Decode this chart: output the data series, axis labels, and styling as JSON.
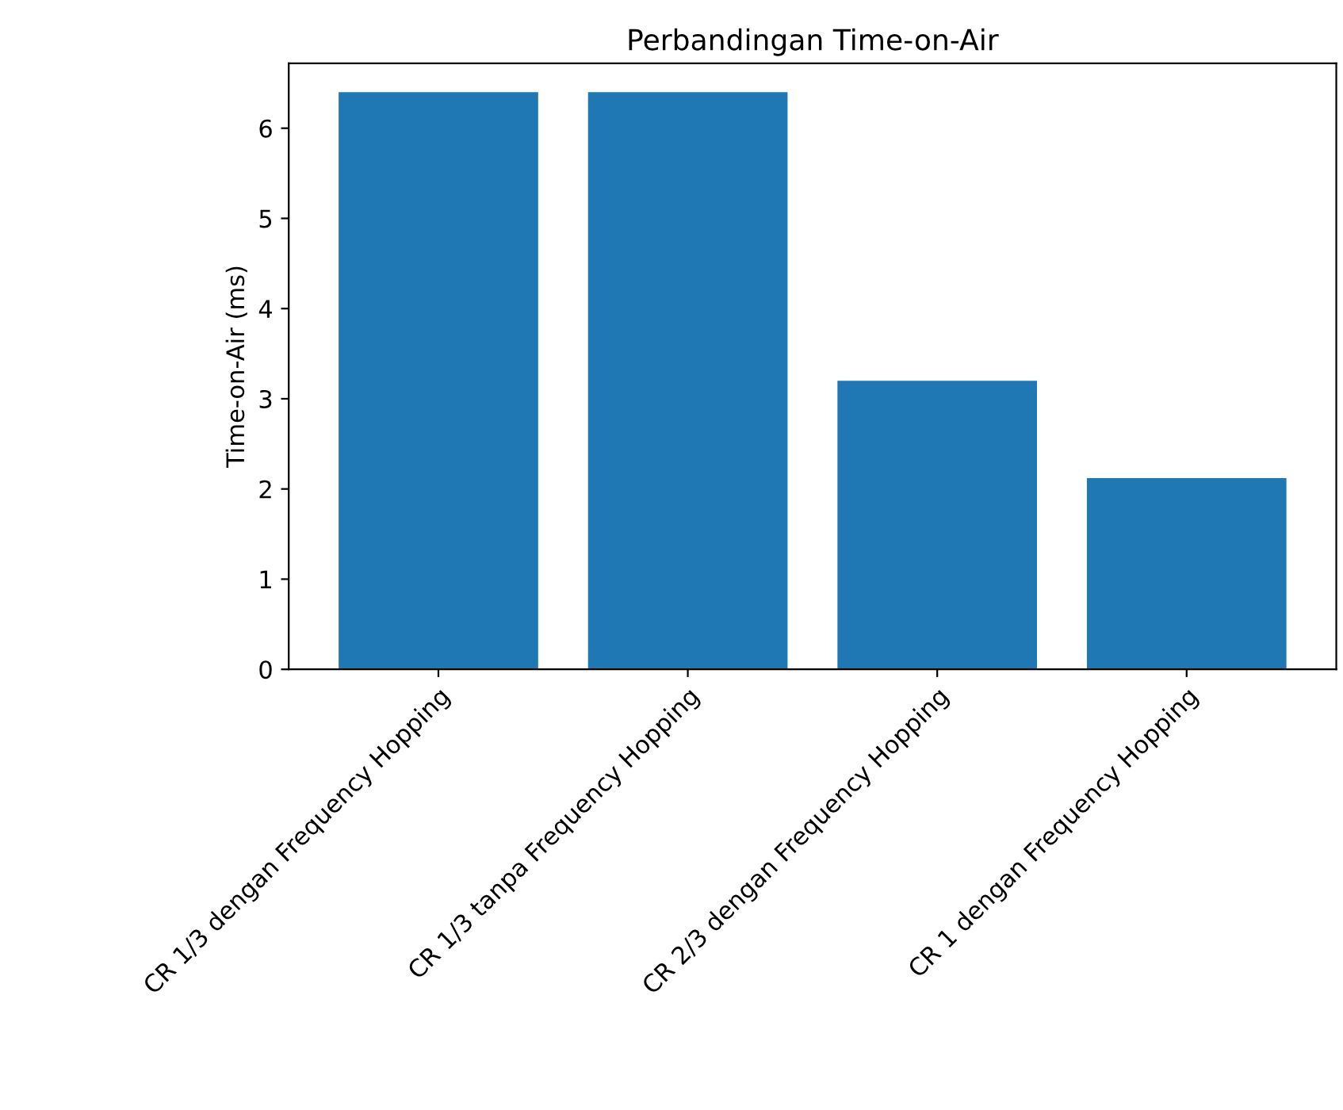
{
  "chart_data": {
    "type": "bar",
    "title": "Perbandingan Time-on-Air",
    "ylabel": "Time-on-Air (ms)",
    "categories": [
      "CR 1/3 dengan Frequency Hopping",
      "CR 1/3 tanpa Frequency Hopping",
      "CR 2/3 dengan Frequency Hopping",
      "CR 1 dengan Frequency Hopping"
    ],
    "values": [
      6.4,
      6.4,
      3.2,
      2.12
    ],
    "color": "#1f77b4",
    "ylim": [
      0,
      6.72
    ],
    "yticks": [
      0,
      1,
      2,
      3,
      4,
      5,
      6
    ],
    "grid": false,
    "legend": false
  }
}
